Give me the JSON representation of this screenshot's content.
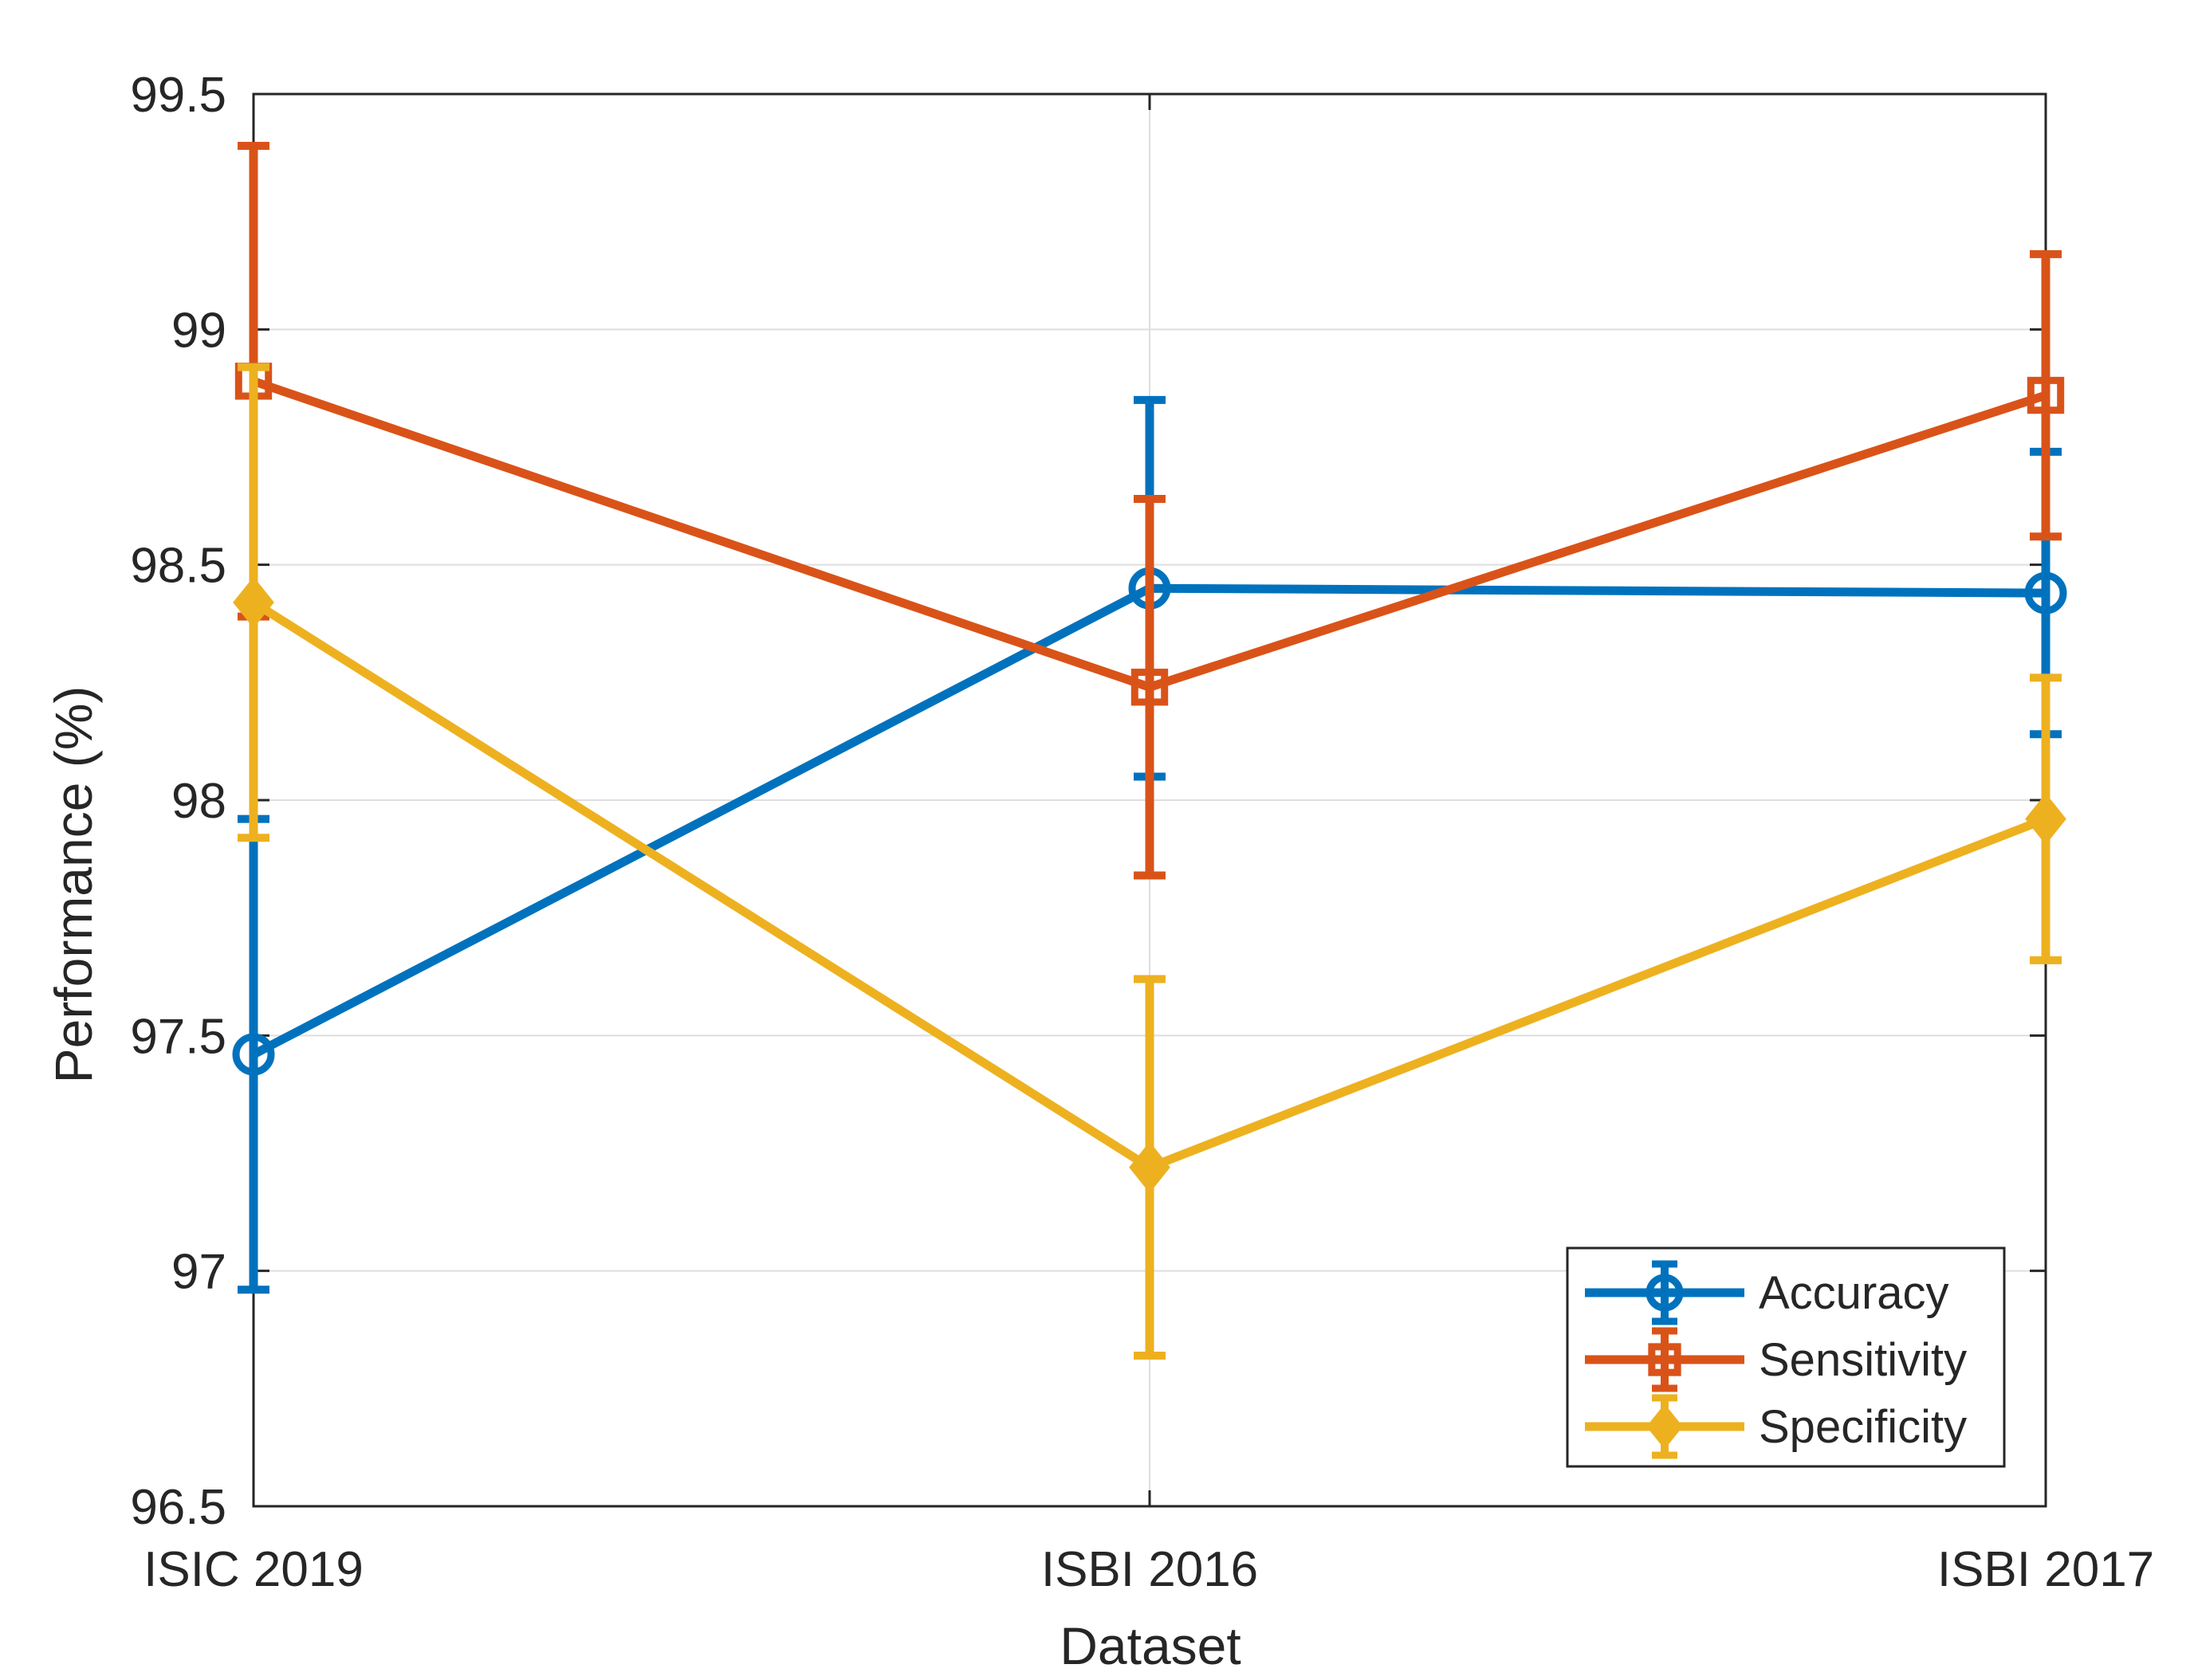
{
  "chart_data": {
    "type": "line",
    "title": "",
    "xlabel": "Dataset",
    "ylabel": "Performance (%)",
    "categories": [
      "ISIC 2019",
      "ISBI 2016",
      "ISBI 2017"
    ],
    "ylim": [
      96.5,
      99.5
    ],
    "yticks": [
      "96.5",
      "97",
      "97.5",
      "98",
      "98.5",
      "99",
      "99.5"
    ],
    "grid": true,
    "legend_position": "bottom-right",
    "series": [
      {
        "name": "Accuracy",
        "color": "#0072BD",
        "marker": "circle",
        "values": [
          97.46,
          98.45,
          98.44
        ],
        "error_low": [
          96.96,
          98.05,
          98.14
        ],
        "error_high": [
          97.96,
          98.85,
          98.74
        ]
      },
      {
        "name": "Sensitivity",
        "color": "#D95319",
        "marker": "square",
        "values": [
          98.89,
          98.24,
          98.86
        ],
        "error_low": [
          98.39,
          97.84,
          98.56
        ],
        "error_high": [
          99.39,
          98.64,
          99.16
        ]
      },
      {
        "name": "Specificity",
        "color": "#EDB120",
        "marker": "diamond",
        "values": [
          98.42,
          97.22,
          97.96
        ],
        "error_low": [
          97.92,
          96.82,
          97.66
        ],
        "error_high": [
          98.92,
          97.62,
          98.26
        ]
      }
    ]
  }
}
